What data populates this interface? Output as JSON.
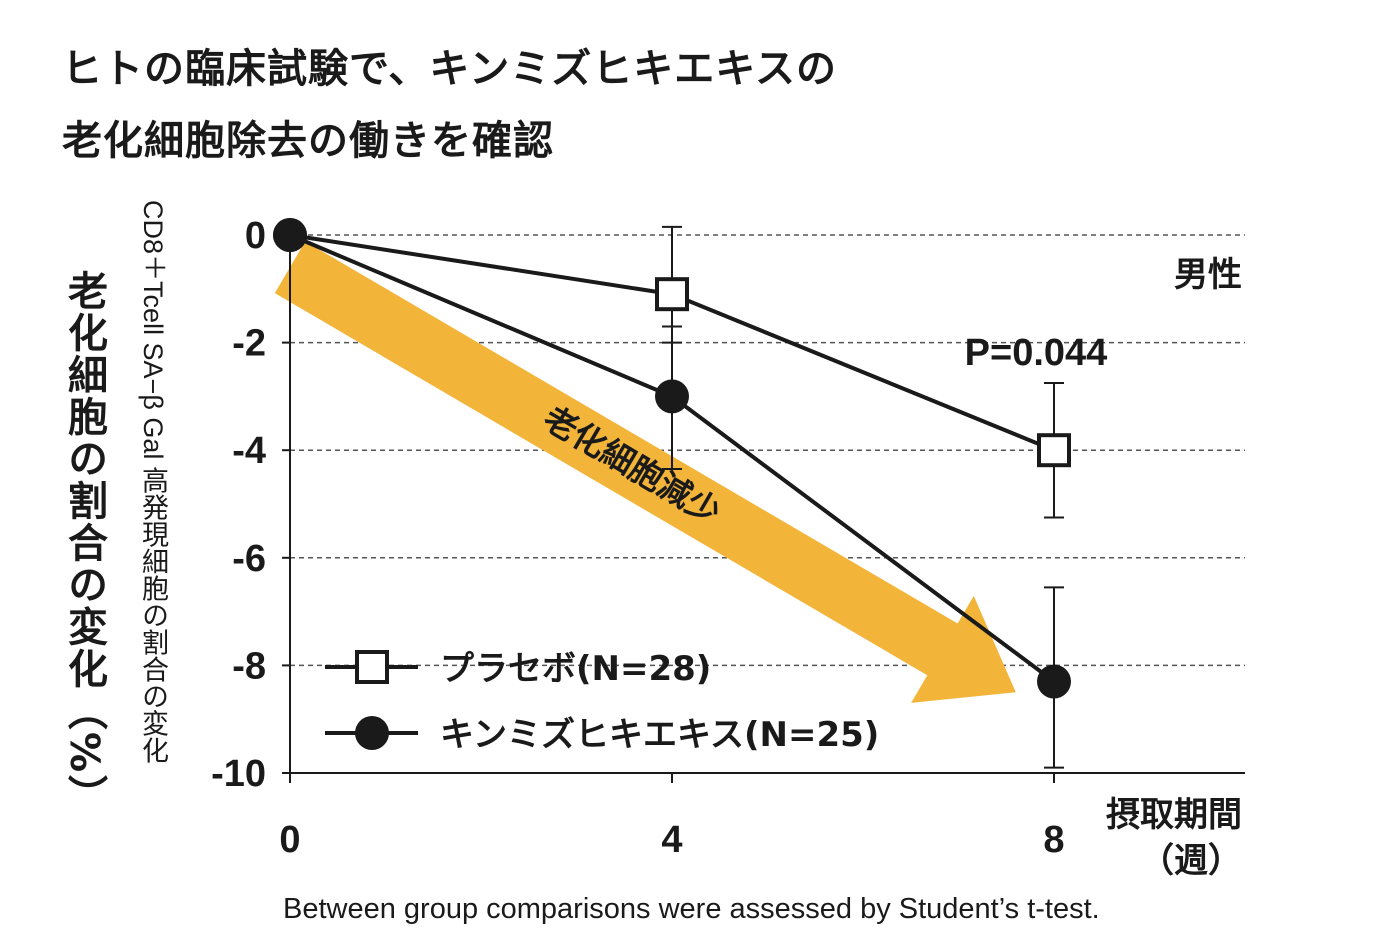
{
  "title_line1": "ヒトの臨床試験で、キンミズヒキエキスの",
  "title_line2": "老化細胞除去の働きを確認",
  "ylabel_main": "老化細胞の割合の変化（%）",
  "ylabel_sub": "CD8＋Tcell SA−β Gal 高発現細胞の割合の変化",
  "xlabel_line1": "摂取期間",
  "xlabel_line2": "（週）",
  "group_label": "男性",
  "pvalue": "P=0.044",
  "arrow_label": "老化細胞減少",
  "footnote": "Between group comparisons were assessed by Student’s t-test.",
  "colors": {
    "arrow": "#F3B43A",
    "line": "#1a1a1a"
  },
  "chart_data": {
    "type": "line",
    "x": [
      0,
      4,
      8
    ],
    "xticks": [
      "0",
      "4",
      "8"
    ],
    "yticks": [
      "0",
      "-2",
      "-4",
      "-6",
      "-8",
      "-10"
    ],
    "ylim": [
      -10,
      0
    ],
    "xlim": [
      0,
      10
    ],
    "grid": "horizontal dashed",
    "legend_position": "bottom-left",
    "series": [
      {
        "name": "プラセボ(N=28)",
        "marker": "open-square",
        "values": [
          0,
          -1.1,
          -4.0
        ],
        "err_low": [
          0,
          -2.0,
          -5.25
        ],
        "err_high": [
          0,
          0.15,
          -2.75
        ]
      },
      {
        "name": "キンミズヒキエキス(N=25)",
        "marker": "filled-circle",
        "values": [
          0,
          -3.0,
          -8.3
        ],
        "err_low": [
          0,
          -4.35,
          -9.9
        ],
        "err_high": [
          0,
          -1.7,
          -6.55
        ]
      }
    ]
  }
}
